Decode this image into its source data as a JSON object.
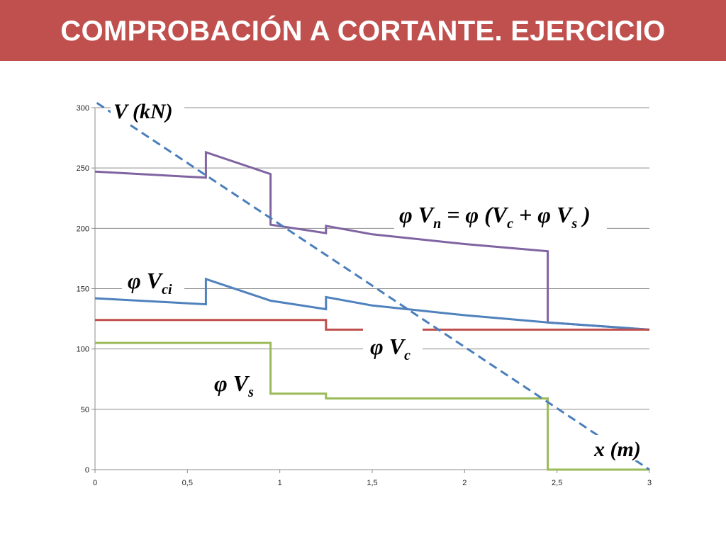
{
  "slide": {
    "title": "COMPROBACIÓN A CORTANTE. EJERCICIO"
  },
  "chart_data": {
    "type": "line",
    "xlim": [
      0,
      3
    ],
    "ylim": [
      0,
      300
    ],
    "x_ticks": [
      0,
      0.5,
      1,
      1.5,
      2,
      2.5,
      3
    ],
    "x_tick_labels": [
      "0",
      "0,5",
      "1",
      "1,5",
      "2",
      "2,5",
      "3"
    ],
    "y_ticks": [
      0,
      50,
      100,
      150,
      200,
      250,
      300
    ],
    "y_tick_labels": [
      "0",
      "50",
      "100",
      "150",
      "200",
      "250",
      "300"
    ],
    "grid": "horizontal",
    "axis_labels": {
      "y": "V (kN)",
      "x": "x (m)"
    },
    "series": [
      {
        "id": "phiVn",
        "color": "#8064a2",
        "style": "solid",
        "points": [
          [
            0,
            247
          ],
          [
            0.6,
            242
          ],
          [
            0.6,
            263
          ],
          [
            0.95,
            245
          ],
          [
            0.95,
            203
          ],
          [
            1.25,
            196
          ],
          [
            1.25,
            202
          ],
          [
            1.5,
            195
          ],
          [
            2,
            187
          ],
          [
            2.45,
            181
          ],
          [
            2.45,
            122
          ],
          [
            3,
            116
          ]
        ]
      },
      {
        "id": "phiVci",
        "color": "#4f81bd",
        "style": "solid",
        "points": [
          [
            0,
            142
          ],
          [
            0.6,
            137
          ],
          [
            0.6,
            158
          ],
          [
            0.95,
            140
          ],
          [
            1.25,
            133
          ],
          [
            1.25,
            143
          ],
          [
            1.5,
            136
          ],
          [
            2,
            128
          ],
          [
            2.45,
            122
          ],
          [
            3,
            116
          ]
        ]
      },
      {
        "id": "phiVc",
        "color": "#c0504d",
        "style": "solid",
        "points": [
          [
            0,
            124
          ],
          [
            1.25,
            124
          ],
          [
            1.25,
            116
          ],
          [
            3,
            116
          ]
        ]
      },
      {
        "id": "phiVs",
        "color": "#9bbb59",
        "style": "solid",
        "points": [
          [
            0,
            105
          ],
          [
            0.95,
            105
          ],
          [
            0.95,
            63
          ],
          [
            1.25,
            63
          ],
          [
            1.25,
            59
          ],
          [
            2.45,
            59
          ],
          [
            2.45,
            0
          ],
          [
            3,
            0
          ]
        ]
      },
      {
        "id": "Vu",
        "color": "#4a7ebb",
        "style": "dashed",
        "points": [
          [
            0.01,
            304
          ],
          [
            3,
            0
          ]
        ]
      }
    ],
    "annotations": [
      {
        "id": "phiVn",
        "text": "φ Vn = φ (Vc + φ Vs )"
      },
      {
        "id": "phiVci",
        "text": "φ Vci"
      },
      {
        "id": "phiVc",
        "text": "φ Vc"
      },
      {
        "id": "phiVs",
        "text": "φ Vs"
      }
    ]
  }
}
